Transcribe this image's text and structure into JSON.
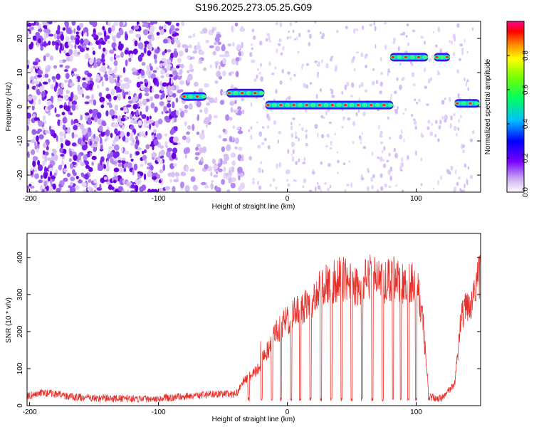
{
  "chart_data": [
    {
      "type": "heatmap",
      "title": "S196.2025.273.05.25.G09",
      "xlabel": "Height of straight line (km)",
      "ylabel": "Frequency (Hz)",
      "xlim": [
        -202,
        150
      ],
      "ylim": [
        -25,
        25
      ],
      "xticks": [
        -200,
        -100,
        0,
        100
      ],
      "xtick_labels": [
        "-200",
        "-100",
        "0",
        "100"
      ],
      "yticks": [
        20,
        10,
        0,
        -10,
        -20
      ],
      "ytick_labels": [
        "20",
        "10",
        "0",
        "-10",
        "-20"
      ],
      "colorbar": {
        "label": "Normalized spectral amplitude",
        "range": [
          0,
          1
        ],
        "ticks": [
          0.0,
          0.2,
          0.4,
          0.6,
          0.8
        ],
        "tick_labels": [
          "0.0",
          "0.2",
          "0.4",
          "0.6",
          "0.8"
        ],
        "colors": [
          "#e8d8f8",
          "#8a2be2",
          "#0000ff",
          "#00bfff",
          "#00ff80",
          "#80ff00",
          "#ffff00",
          "#ff8000",
          "#ff0000",
          "#ff00a0"
        ]
      },
      "ridge": [
        {
          "x": [
            -80,
            -75,
            -70,
            -65
          ],
          "freq": 3
        },
        {
          "x": [
            -45,
            -40,
            -35,
            -30,
            -25,
            -20
          ],
          "freq": 4
        },
        {
          "x": [
            -15,
            -10,
            -5,
            0,
            5,
            10,
            15,
            20,
            25,
            30,
            35,
            40,
            45,
            50,
            55,
            60,
            65,
            70,
            75,
            80
          ],
          "freq": 0.5
        },
        {
          "x": [
            82,
            87,
            92,
            97,
            102,
            107
          ],
          "freq": 14.5
        },
        {
          "x": [
            116,
            120,
            124
          ],
          "freq": 14.5
        },
        {
          "x": [
            132,
            137,
            142,
            147
          ],
          "freq": 1
        }
      ]
    },
    {
      "type": "line",
      "title": "",
      "xlabel": "Height of straight line (km)",
      "ylabel": "SNR (10 * v/v)",
      "xlim": [
        -202,
        150
      ],
      "ylim": [
        0,
        465
      ],
      "xticks": [
        -200,
        -100,
        0,
        100
      ],
      "xtick_labels": [
        "-200",
        "-100",
        "0",
        "100"
      ],
      "yticks": [
        0,
        100,
        200,
        300,
        400
      ],
      "ytick_labels": [
        "0",
        "100",
        "200",
        "300",
        "400"
      ],
      "color": "#e8302a",
      "series": [
        {
          "name": "SNR",
          "x": [
            -202,
            -190,
            -180,
            -170,
            -160,
            -150,
            -140,
            -130,
            -120,
            -110,
            -100,
            -90,
            -80,
            -70,
            -60,
            -50,
            -40,
            -35,
            -30,
            -25,
            -20,
            -15,
            -10,
            -5,
            0,
            5,
            10,
            15,
            20,
            25,
            30,
            35,
            40,
            45,
            50,
            55,
            60,
            65,
            70,
            75,
            80,
            85,
            90,
            95,
            100,
            105,
            110,
            115,
            120,
            125,
            130,
            135,
            140,
            145,
            150
          ],
          "y": [
            25,
            35,
            32,
            25,
            22,
            20,
            20,
            19,
            19,
            19,
            20,
            22,
            25,
            28,
            30,
            32,
            30,
            60,
            80,
            90,
            120,
            150,
            190,
            210,
            230,
            250,
            260,
            275,
            290,
            310,
            330,
            335,
            340,
            345,
            330,
            320,
            335,
            350,
            345,
            330,
            340,
            345,
            335,
            330,
            340,
            230,
            25,
            20,
            20,
            40,
            60,
            240,
            270,
            300,
            360
          ]
        }
      ],
      "dips": [
        -30,
        -20,
        -12,
        -5,
        3,
        10,
        18,
        26,
        34,
        42,
        50,
        58,
        66,
        74,
        82,
        88,
        94,
        100,
        110
      ]
    }
  ]
}
